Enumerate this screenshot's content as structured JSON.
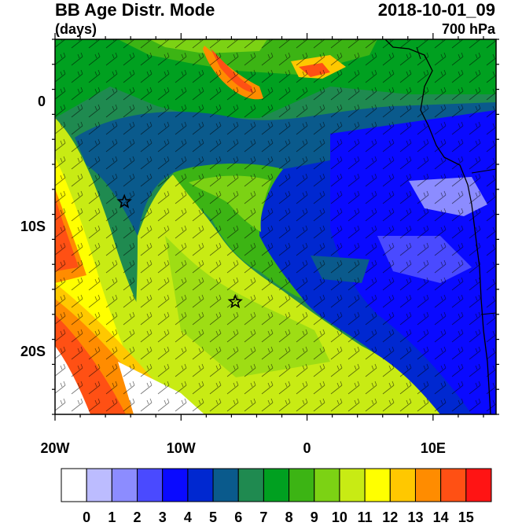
{
  "header": {
    "title": "BB Age Distr. Mode",
    "units": "(days)",
    "datetime": "2018-10-01_09",
    "level": "700 hPa"
  },
  "axes": {
    "y_ticks": [
      {
        "label": "0",
        "lat": 0
      },
      {
        "label": "10S",
        "lat": -10
      },
      {
        "label": "20S",
        "lat": -20
      }
    ],
    "x_ticks": [
      {
        "label": "20W",
        "lon": -20
      },
      {
        "label": "10W",
        "lon": -10
      },
      {
        "label": "0",
        "lon": 0
      },
      {
        "label": "10E",
        "lon": 10
      }
    ],
    "lon_range": [
      -20,
      15
    ],
    "lat_range": [
      -25,
      5
    ]
  },
  "colorbar": {
    "labels": [
      "0",
      "1",
      "2",
      "3",
      "4",
      "5",
      "6",
      "7",
      "8",
      "9",
      "10",
      "11",
      "12",
      "13",
      "14",
      "15"
    ],
    "colors": [
      "#ffffff",
      "#bcbcff",
      "#8c8cff",
      "#4a4aff",
      "#0a0aff",
      "#0028d0",
      "#0a5a8c",
      "#1f8a50",
      "#00a020",
      "#3cb414",
      "#7cd214",
      "#c8eb14",
      "#ffff00",
      "#ffc800",
      "#ff8c00",
      "#ff5014",
      "#ff1414"
    ]
  },
  "markers": [
    {
      "name": "star-marker-1",
      "lon": -14.5,
      "lat": -8
    },
    {
      "name": "star-marker-2",
      "lon": -5.7,
      "lat": -16
    }
  ]
}
